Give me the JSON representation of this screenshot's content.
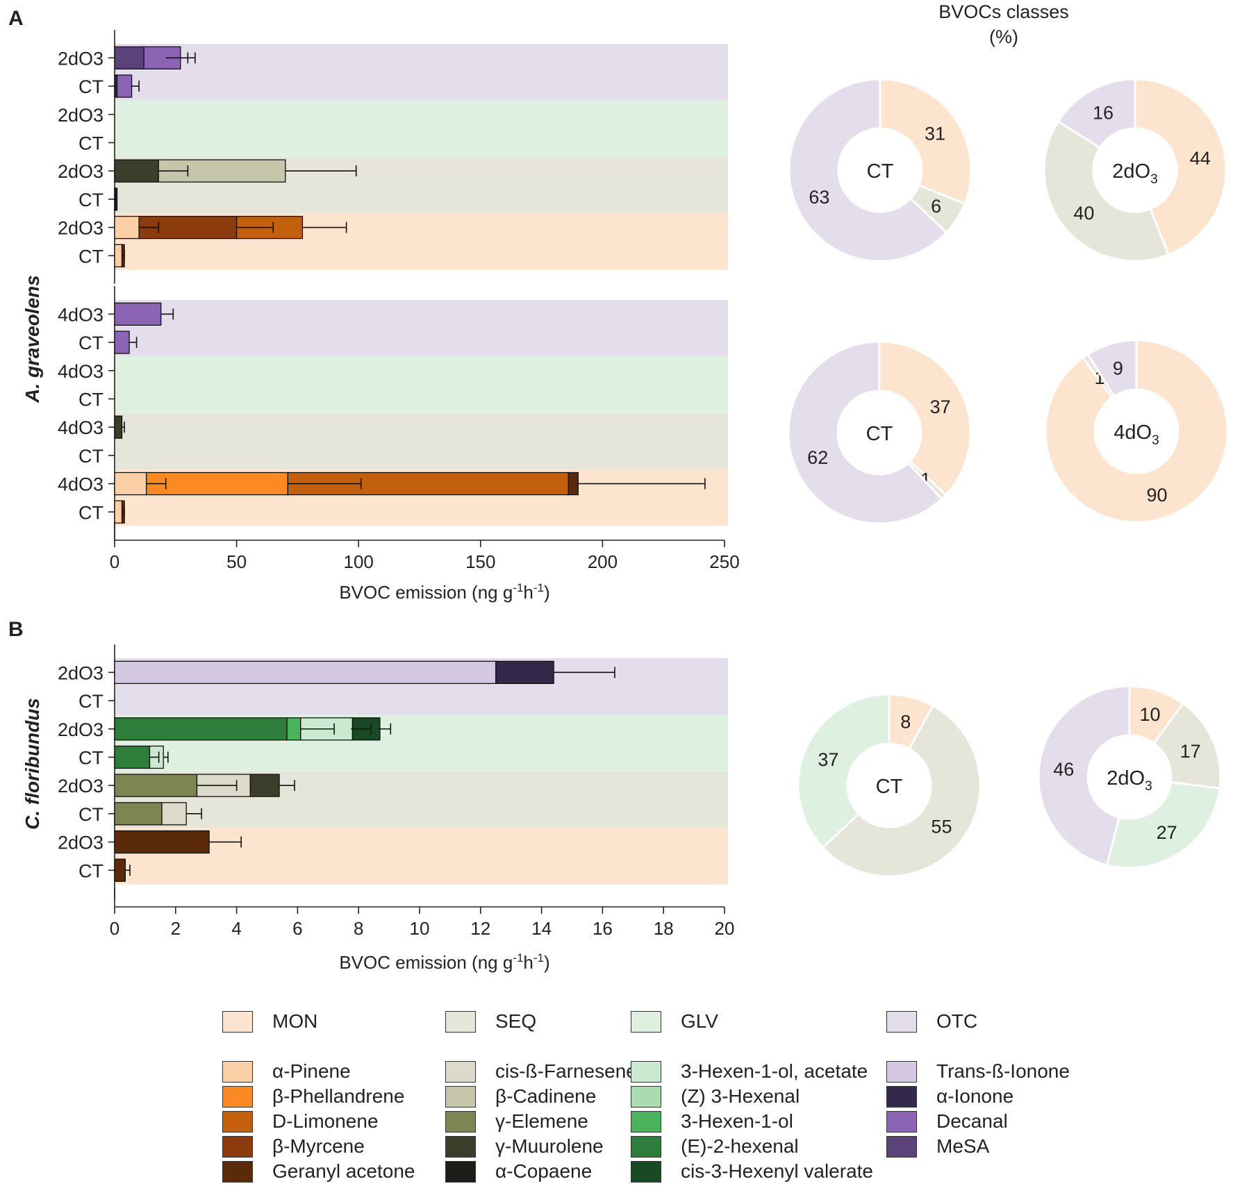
{
  "chart_data": {
    "type": "bar",
    "pie_title": [
      "BVOCs classes",
      "(%)"
    ],
    "panels": [
      {
        "label": "A",
        "species": "A. graveolens",
        "xlabel": "BVOC emission (ng g-1h-1)",
        "xlim": [
          0,
          250
        ],
        "xticks": [
          "0",
          "50",
          "100",
          "150",
          "200",
          "250"
        ],
        "groups": [
          {
            "rows": [
              {
                "label": "2dO3",
                "band": "OTC",
                "segments": [
                  {
                    "compound": "MeSA",
                    "value": 12
                  },
                  {
                    "compound": "Decanal",
                    "value": 15
                  }
                ],
                "error": [
                  {
                    "at": 21,
                    "sd": 9
                  },
                  {
                    "at": 27,
                    "sd": 6
                  }
                ]
              },
              {
                "label": "CT",
                "band": "OTC",
                "segments": [
                  {
                    "compound": "α-Ionone",
                    "value": 1
                  },
                  {
                    "compound": "Decanal",
                    "value": 6
                  }
                ],
                "error": [
                  {
                    "at": 7,
                    "sd": 3
                  }
                ]
              },
              {
                "label": "2dO3",
                "band": "GLV",
                "segments": [],
                "error": []
              },
              {
                "label": "CT",
                "band": "GLV",
                "segments": [],
                "error": []
              },
              {
                "label": "2dO3",
                "band": "SEQ",
                "segments": [
                  {
                    "compound": "γ-Muurolene",
                    "value": 18
                  },
                  {
                    "compound": "β-Cadinene",
                    "value": 52
                  }
                ],
                "error": [
                  {
                    "at": 18,
                    "sd": 12
                  },
                  {
                    "at": 70,
                    "sd": 29
                  }
                ]
              },
              {
                "label": "CT",
                "band": "SEQ",
                "segments": [
                  {
                    "compound": "α-Copaene",
                    "value": 1
                  }
                ],
                "error": []
              },
              {
                "label": "2dO3",
                "band": "MON",
                "segments": [
                  {
                    "compound": "α-Pinene",
                    "value": 10
                  },
                  {
                    "compound": "β-Myrcene",
                    "value": 40
                  },
                  {
                    "compound": "D-Limonene",
                    "value": 27
                  }
                ],
                "error": [
                  {
                    "at": 10,
                    "sd": 8
                  },
                  {
                    "at": 50,
                    "sd": 15
                  },
                  {
                    "at": 77,
                    "sd": 18
                  }
                ]
              },
              {
                "label": "CT",
                "band": "MON",
                "segments": [
                  {
                    "compound": "α-Pinene",
                    "value": 3
                  },
                  {
                    "compound": "Geranyl acetone",
                    "value": 1
                  }
                ],
                "error": [
                  {
                    "at": 3,
                    "sd": 1
                  }
                ]
              }
            ]
          },
          {
            "rows": [
              {
                "label": "4dO3",
                "band": "OTC",
                "segments": [
                  {
                    "compound": "Decanal",
                    "value": 19
                  }
                ],
                "error": [
                  {
                    "at": 19,
                    "sd": 5
                  }
                ]
              },
              {
                "label": "CT",
                "band": "OTC",
                "segments": [
                  {
                    "compound": "Decanal",
                    "value": 6
                  }
                ],
                "error": [
                  {
                    "at": 6,
                    "sd": 3
                  }
                ]
              },
              {
                "label": "4dO3",
                "band": "GLV",
                "segments": [],
                "error": []
              },
              {
                "label": "CT",
                "band": "GLV",
                "segments": [],
                "error": []
              },
              {
                "label": "4dO3",
                "band": "SEQ",
                "segments": [
                  {
                    "compound": "γ-Muurolene",
                    "value": 3
                  }
                ],
                "error": [
                  {
                    "at": 3,
                    "sd": 1
                  }
                ]
              },
              {
                "label": "CT",
                "band": "SEQ",
                "segments": [],
                "error": []
              },
              {
                "label": "4dO3",
                "band": "MON",
                "segments": [
                  {
                    "compound": "α-Pinene",
                    "value": 13
                  },
                  {
                    "compound": "β-Phellandrene",
                    "value": 58
                  },
                  {
                    "compound": "D-Limonene",
                    "value": 115
                  },
                  {
                    "compound": "Geranyl acetone",
                    "value": 4
                  }
                ],
                "error": [
                  {
                    "at": 13,
                    "sd": 8
                  },
                  {
                    "at": 71,
                    "sd": 30
                  },
                  {
                    "at": 190,
                    "sd": 52
                  }
                ]
              },
              {
                "label": "CT",
                "band": "MON",
                "segments": [
                  {
                    "compound": "α-Pinene",
                    "value": 3
                  },
                  {
                    "compound": "Geranyl acetone",
                    "value": 1
                  }
                ],
                "error": [
                  {
                    "at": 3,
                    "sd": 1
                  }
                ]
              }
            ]
          }
        ]
      },
      {
        "label": "B",
        "species": "C. floribundus",
        "xlabel": "BVOC emission (ng g-1h-1)",
        "xlim": [
          0,
          20
        ],
        "xticks": [
          "0",
          "2",
          "4",
          "6",
          "8",
          "10",
          "12",
          "14",
          "16",
          "18",
          "20"
        ],
        "groups": [
          {
            "rows": [
              {
                "label": "2dO3",
                "band": "OTC",
                "segments": [
                  {
                    "compound": "Trans-ß-Ionone",
                    "value": 12.5
                  },
                  {
                    "compound": "α-Ionone",
                    "value": 1.9
                  }
                ],
                "error": [
                  {
                    "at": 14.4,
                    "sd": 2
                  }
                ]
              },
              {
                "label": "CT",
                "band": "OTC",
                "segments": [],
                "error": []
              },
              {
                "label": "2dO3",
                "band": "GLV",
                "segments": [
                  {
                    "compound": "(E)-2-hexenal",
                    "value": 5.65
                  },
                  {
                    "compound": "3-Hexen-1-ol",
                    "value": 0.45
                  },
                  {
                    "compound": "3-Hexen-1-ol, acetate",
                    "value": 1.7
                  },
                  {
                    "compound": "cis-3-Hexenyl valerate",
                    "value": 0.9
                  }
                ],
                "error": [
                  {
                    "at": 6.1,
                    "sd": 1.1
                  },
                  {
                    "at": 7.75,
                    "sd": 0.65
                  },
                  {
                    "at": 8.65,
                    "sd": 0.4
                  }
                ]
              },
              {
                "label": "CT",
                "band": "GLV",
                "segments": [
                  {
                    "compound": "(E)-2-hexenal",
                    "value": 1.15
                  },
                  {
                    "compound": "3-Hexen-1-ol, acetate",
                    "value": 0.45
                  }
                ],
                "error": [
                  {
                    "at": 1.15,
                    "sd": 0.3
                  },
                  {
                    "at": 1.6,
                    "sd": 0.15
                  }
                ]
              },
              {
                "label": "2dO3",
                "band": "SEQ",
                "segments": [
                  {
                    "compound": "γ-Elemene",
                    "value": 2.7
                  },
                  {
                    "compound": "cis-ß-Farnesene",
                    "value": 1.75
                  },
                  {
                    "compound": "γ-Muurolene",
                    "value": 0.95
                  }
                ],
                "error": [
                  {
                    "at": 2.7,
                    "sd": 1.3
                  },
                  {
                    "at": 5.4,
                    "sd": 0.5
                  }
                ]
              },
              {
                "label": "CT",
                "band": "SEQ",
                "segments": [
                  {
                    "compound": "γ-Elemene",
                    "value": 1.55
                  },
                  {
                    "compound": "cis-ß-Farnesene",
                    "value": 0.8
                  }
                ],
                "error": [
                  {
                    "at": 2.35,
                    "sd": 0.5
                  }
                ]
              },
              {
                "label": "2dO3",
                "band": "MON",
                "segments": [
                  {
                    "compound": "Geranyl acetone",
                    "value": 3.1
                  }
                ],
                "error": [
                  {
                    "at": 3.1,
                    "sd": 1.05
                  }
                ]
              },
              {
                "label": "CT",
                "band": "MON",
                "segments": [
                  {
                    "compound": "Geranyl acetone",
                    "value": 0.35
                  }
                ],
                "error": [
                  {
                    "at": 0.35,
                    "sd": 0.15
                  }
                ]
              }
            ]
          }
        ]
      }
    ],
    "pies": [
      {
        "center": "CT",
        "sub": "",
        "panel": "A",
        "slices": [
          {
            "class": "MON",
            "value": 31
          },
          {
            "class": "SEQ",
            "value": 6
          },
          {
            "class": "GLV",
            "value": 0
          },
          {
            "class": "OTC",
            "value": 63
          }
        ]
      },
      {
        "center": "2dO",
        "sub": "3",
        "panel": "A",
        "slices": [
          {
            "class": "MON",
            "value": 44
          },
          {
            "class": "SEQ",
            "value": 40
          },
          {
            "class": "GLV",
            "value": 0
          },
          {
            "class": "OTC",
            "value": 16
          }
        ]
      },
      {
        "center": "CT",
        "sub": "",
        "panel": "A",
        "slices": [
          {
            "class": "MON",
            "value": 37
          },
          {
            "class": "SEQ",
            "value": 1
          },
          {
            "class": "GLV",
            "value": 0
          },
          {
            "class": "OTC",
            "value": 62
          }
        ]
      },
      {
        "center": "4dO",
        "sub": "3",
        "panel": "A",
        "slices": [
          {
            "class": "MON",
            "value": 90
          },
          {
            "class": "SEQ",
            "value": 1
          },
          {
            "class": "GLV",
            "value": 0
          },
          {
            "class": "OTC",
            "value": 9
          }
        ]
      },
      {
        "center": "CT",
        "sub": "",
        "panel": "B",
        "slices": [
          {
            "class": "MON",
            "value": 8
          },
          {
            "class": "SEQ",
            "value": 55
          },
          {
            "class": "GLV",
            "value": 37
          },
          {
            "class": "OTC",
            "value": 0
          }
        ]
      },
      {
        "center": "2dO",
        "sub": "3",
        "panel": "B",
        "slices": [
          {
            "class": "MON",
            "value": 10
          },
          {
            "class": "SEQ",
            "value": 17
          },
          {
            "class": "GLV",
            "value": 27
          },
          {
            "class": "OTC",
            "value": 46
          }
        ]
      }
    ],
    "class_colors": {
      "MON": "#fde4cf",
      "SEQ": "#e6e5da",
      "GLV": "#def0df",
      "OTC": "#e4ddec"
    },
    "compound_colors": {
      "α-Pinene": "#fcd0a6",
      "β-Phellandrene": "#fb8a25",
      "D-Limonene": "#c2600e",
      "β-Myrcene": "#8c3b0d",
      "Geranyl acetone": "#5a2a0a",
      "cis-ß-Farnesene": "#dcdbcb",
      "β-Cadinene": "#c6c6ab",
      "γ-Elemene": "#7e8554",
      "γ-Muurolene": "#3a3e2b",
      "α-Copaene": "#1c1e17",
      "3-Hexen-1-ol, acetate": "#c9ead0",
      "(Z) 3-Hexenal": "#a9dcb2",
      "3-Hexen-1-ol": "#49b45b",
      "(E)-2-hexenal": "#2d7e3a",
      "cis-3-Hexenyl valerate": "#1a4a25",
      "Trans-ß-Ionone": "#d5c8e2",
      "α-Ionone": "#34294a",
      "Decanal": "#8b64b3",
      "MeSA": "#5b437a"
    },
    "legend_classes": [
      "MON",
      "SEQ",
      "GLV",
      "OTC"
    ],
    "legend_compounds": [
      [
        "α-Pinene",
        "β-Phellandrene",
        "D-Limonene",
        "β-Myrcene",
        "Geranyl acetone"
      ],
      [
        "cis-ß-Farnesene",
        "β-Cadinene",
        "γ-Elemene",
        "γ-Muurolene",
        "α-Copaene"
      ],
      [
        "3-Hexen-1-ol, acetate",
        "(Z) 3-Hexenal",
        "3-Hexen-1-ol",
        "(E)-2-hexenal",
        "cis-3-Hexenyl valerate"
      ],
      [
        "Trans-ß-Ionone",
        "α-Ionone",
        "Decanal",
        "MeSA"
      ]
    ]
  }
}
